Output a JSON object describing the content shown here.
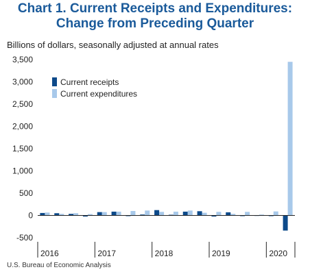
{
  "title_line1": "Chart 1. Current Receipts and Expenditures:",
  "title_line2": "Change from Preceding Quarter",
  "ylabel": "Billions of dollars, seasonally adjusted at annual rates",
  "source": "U.S. Bureau of Economic Analysis",
  "colors": {
    "receipts": "#0d4a8a",
    "expenditures": "#a8c9ea",
    "title": "#1a5a9a"
  },
  "chart_data": {
    "type": "bar",
    "ylim": [
      -500,
      3500
    ],
    "yticks": [
      "3,500",
      "3,000",
      "2,500",
      "2,000",
      "1,500",
      "1,000",
      "500",
      "0",
      "-500"
    ],
    "ytick_values": [
      3500,
      3000,
      2500,
      2000,
      1500,
      1000,
      500,
      0,
      -500
    ],
    "quarters": [
      "2016Q1",
      "2016Q2",
      "2016Q3",
      "2016Q4",
      "2017Q1",
      "2017Q2",
      "2017Q3",
      "2017Q4",
      "2018Q1",
      "2018Q2",
      "2018Q3",
      "2018Q4",
      "2019Q1",
      "2019Q2",
      "2019Q3",
      "2019Q4",
      "2020Q1",
      "2020Q2"
    ],
    "year_labels": [
      {
        "label": "2016",
        "start": 0,
        "end": 3
      },
      {
        "label": "2017",
        "start": 4,
        "end": 7
      },
      {
        "label": "2018",
        "start": 8,
        "end": 11
      },
      {
        "label": "2019",
        "start": 12,
        "end": 15
      },
      {
        "label": "2020",
        "start": 16,
        "end": 17
      }
    ],
    "legend": [
      "Current receipts",
      "Current expenditures"
    ],
    "legend_position": "top-left",
    "grid": false,
    "series": [
      {
        "name": "Current receipts",
        "values": [
          55,
          50,
          35,
          -25,
          75,
          85,
          -15,
          20,
          120,
          15,
          85,
          95,
          -25,
          70,
          -10,
          5,
          -5,
          -340
        ]
      },
      {
        "name": "Current expenditures",
        "values": [
          65,
          35,
          50,
          30,
          75,
          85,
          100,
          110,
          80,
          85,
          110,
          60,
          80,
          35,
          80,
          20,
          90,
          3450
        ]
      }
    ]
  }
}
